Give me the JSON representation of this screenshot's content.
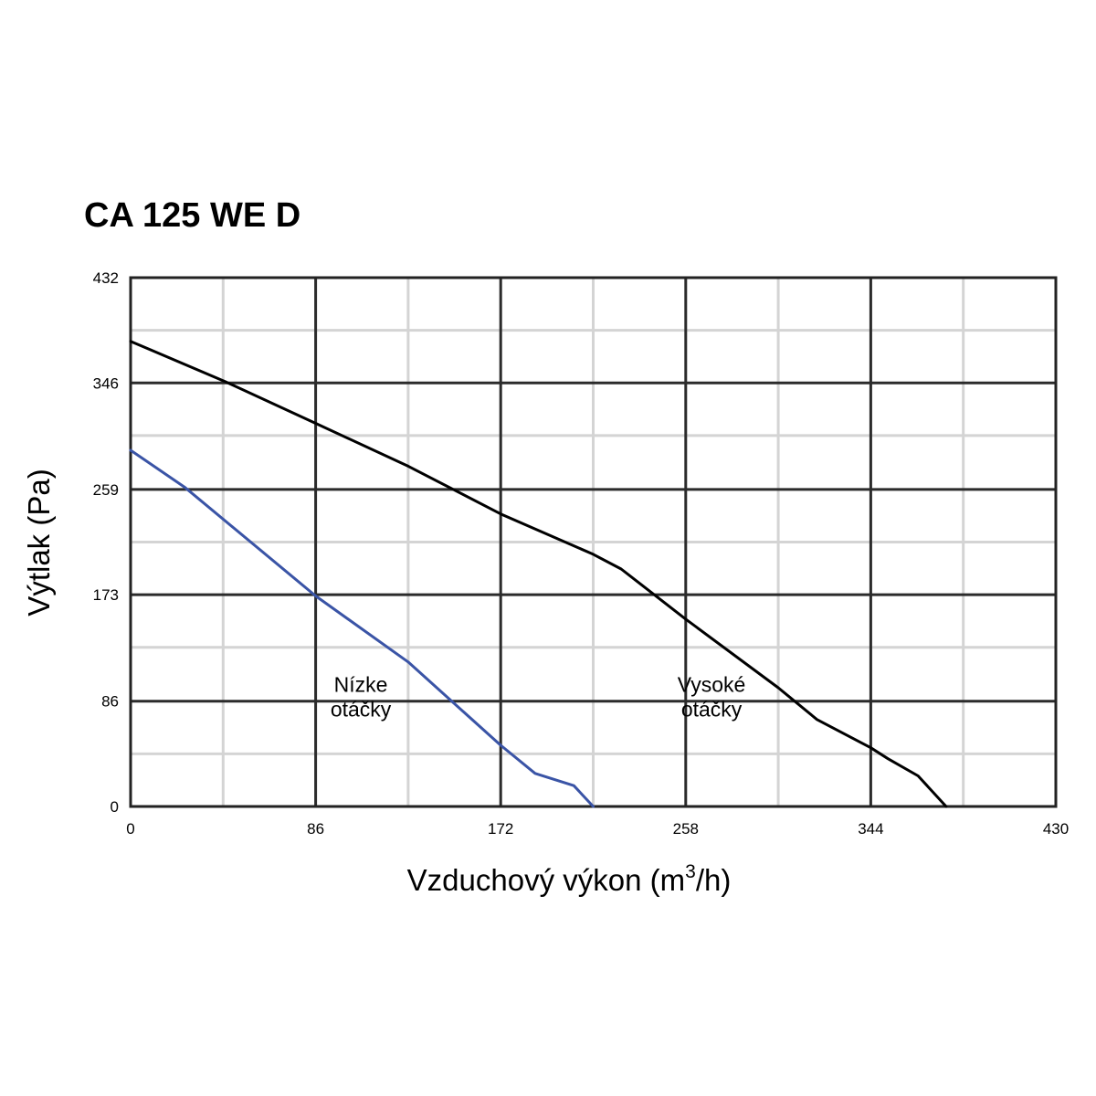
{
  "chart_data": {
    "type": "line",
    "title": "CA 125 WE D",
    "xlabel_main": "Vzduchový výkon (m",
    "xlabel_sup": "3",
    "xlabel_end": "/h)",
    "ylabel": "Výtlak (Pa)",
    "xlim": [
      0,
      430
    ],
    "ylim": [
      0,
      432
    ],
    "x_ticks": [
      0,
      86,
      172,
      258,
      344,
      430
    ],
    "y_ticks": [
      0,
      86,
      173,
      259,
      346,
      432
    ],
    "x_minor": [
      43,
      129,
      215,
      301,
      387
    ],
    "y_minor": [
      43,
      130,
      216,
      303,
      389
    ],
    "grid": true,
    "legend": "none",
    "series": [
      {
        "color": "#000000",
        "points": [
          [
            0,
            380
          ],
          [
            44,
            347
          ],
          [
            86,
            313
          ],
          [
            129,
            278
          ],
          [
            172,
            239
          ],
          [
            215,
            206
          ],
          [
            228,
            194
          ],
          [
            258,
            153
          ],
          [
            301,
            97
          ],
          [
            319,
            71
          ],
          [
            344,
            48
          ],
          [
            352,
            39
          ],
          [
            366,
            25
          ],
          [
            379,
            0
          ]
        ]
      },
      {
        "color": "#3a54a6",
        "points": [
          [
            0,
            291
          ],
          [
            25,
            261
          ],
          [
            86,
            172
          ],
          [
            129,
            118
          ],
          [
            172,
            50
          ],
          [
            188,
            27
          ],
          [
            206,
            17
          ],
          [
            215,
            0
          ]
        ]
      }
    ],
    "annotations": [
      {
        "lines": [
          "Nízke",
          "otáčky"
        ],
        "x": 107,
        "y": 86
      },
      {
        "lines": [
          "Vysoké",
          "otáčky"
        ],
        "x": 270,
        "y": 86
      }
    ]
  }
}
